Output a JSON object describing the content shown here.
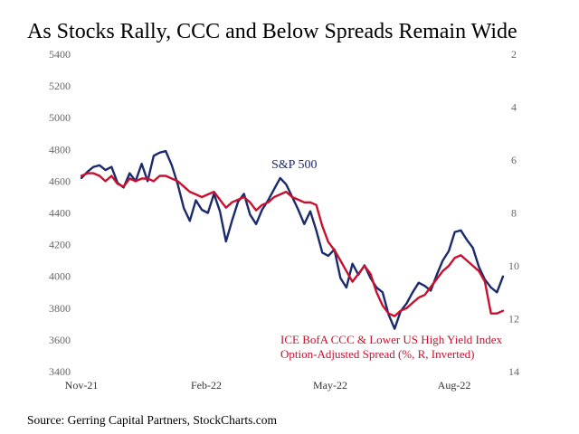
{
  "chart_data": {
    "type": "line",
    "title": "As Stocks Rally, CCC and Below Spreads Remain Wide",
    "source": "Source: Gerring Capital Partners, StockCharts.com",
    "x_tick_labels": [
      "Nov-21",
      "Feb-22",
      "May-22",
      "Aug-22"
    ],
    "left_axis": {
      "ticks": [
        "3400",
        "3600",
        "3800",
        "4000",
        "4200",
        "4400",
        "4600",
        "4800",
        "5000",
        "5200",
        "5400"
      ],
      "ylim": [
        3400,
        5400
      ]
    },
    "right_axis": {
      "ticks": [
        "2",
        "4",
        "6",
        "8",
        "10",
        "12",
        "14"
      ],
      "ylim": [
        14,
        2
      ],
      "inverted": true
    },
    "series": [
      {
        "name": "S&P 500",
        "label": "S&P 500",
        "axis": "left",
        "color": "#1a2a6c",
        "values": [
          4620,
          4660,
          4690,
          4700,
          4670,
          4690,
          4590,
          4560,
          4650,
          4600,
          4710,
          4600,
          4760,
          4780,
          4790,
          4700,
          4580,
          4430,
          4350,
          4480,
          4420,
          4400,
          4520,
          4410,
          4220,
          4350,
          4470,
          4520,
          4390,
          4330,
          4420,
          4480,
          4550,
          4620,
          4580,
          4500,
          4420,
          4330,
          4410,
          4290,
          4150,
          4130,
          4170,
          3990,
          3930,
          4080,
          4010,
          4070,
          3990,
          3930,
          3900,
          3760,
          3670,
          3780,
          3830,
          3900,
          3960,
          3940,
          3910,
          4010,
          4100,
          4160,
          4280,
          4290,
          4230,
          4180,
          4060,
          3980,
          3930,
          3900,
          4000
        ]
      },
      {
        "name": "ICE BofA CCC & Lower US High Yield Index Option-Adjusted Spread (%, R, Inverted)",
        "label_line1": "ICE BofA CCC & Lower US High Yield Index",
        "label_line2": "Option-Adjusted Spread (%, R, Inverted)",
        "axis": "right",
        "color": "#c8102e",
        "values": [
          6.6,
          6.5,
          6.5,
          6.6,
          6.8,
          6.6,
          6.9,
          7.0,
          6.7,
          6.8,
          6.7,
          6.7,
          6.8,
          6.6,
          6.6,
          6.7,
          6.8,
          7.0,
          7.2,
          7.3,
          7.4,
          7.3,
          7.2,
          7.5,
          7.8,
          7.6,
          7.5,
          7.4,
          7.6,
          7.9,
          7.7,
          7.6,
          7.4,
          7.3,
          7.2,
          7.4,
          7.5,
          7.6,
          7.6,
          7.7,
          8.5,
          9.1,
          9.4,
          9.8,
          10.2,
          10.6,
          10.3,
          10.0,
          10.3,
          11.0,
          11.5,
          11.8,
          11.9,
          11.7,
          11.6,
          11.4,
          11.2,
          11.1,
          10.8,
          10.5,
          10.2,
          10.0,
          9.7,
          9.6,
          9.8,
          10.0,
          10.2,
          10.6,
          11.8,
          11.8,
          11.7
        ]
      }
    ]
  }
}
